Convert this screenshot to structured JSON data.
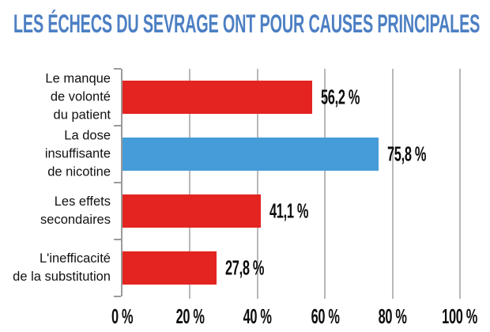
{
  "title": "LES ÉCHECS DU SEVRAGE ONT POUR CAUSES PRINCIPALES",
  "colors": {
    "title": "#4c7fc3",
    "red": "#e32421",
    "blue": "#459cd8",
    "grid": "#b8b8b8",
    "axis": "#9a9a9a",
    "text": "#111111",
    "background": "#ffffff"
  },
  "chart_data": {
    "type": "bar",
    "orientation": "horizontal",
    "title": "LES ÉCHECS DU SEVRAGE ONT POUR CAUSES PRINCIPALES",
    "categories": [
      "Le manque de volonté du patient",
      "La dose insuffisante de nicotine",
      "Les effets secondaires",
      "L'inefficacité de la substitution"
    ],
    "category_lines": [
      [
        "Le manque",
        "de volonté",
        "du patient"
      ],
      [
        "La dose",
        "insuffisante",
        "de nicotine"
      ],
      [
        "Les effets",
        "secondaires"
      ],
      [
        "L'inefficacité",
        "de la substitution"
      ]
    ],
    "values": [
      56.2,
      75.8,
      41.1,
      27.8
    ],
    "value_labels": [
      "56,2 %",
      "75,8 %",
      "41,1 %",
      "27,8 %"
    ],
    "bar_colors": [
      "#e32421",
      "#459cd8",
      "#e32421",
      "#e32421"
    ],
    "xlim": [
      0,
      100
    ],
    "x_tick_values": [
      0,
      20,
      40,
      60,
      80,
      100
    ],
    "x_tick_labels": [
      "0 %",
      "20 %",
      "40 %",
      "60 %",
      "80 %",
      "100 %"
    ],
    "grid": true,
    "legend": false
  }
}
